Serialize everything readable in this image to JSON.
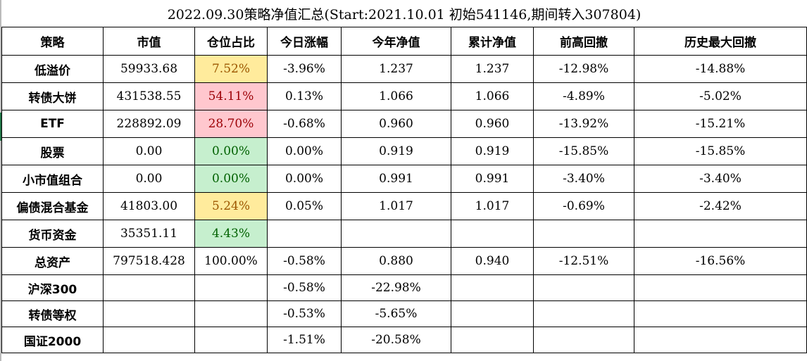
{
  "title": "2022.09.30策略净值汇总(Start:2021.10.01 初始541146,期间转入307804)",
  "headers": [
    "策略",
    "市值",
    "仓位占比",
    "今日涨幅",
    "今年净值",
    "累计净值",
    "前高回撤",
    "历史最大回撤"
  ],
  "colors": {
    "yellow_fill": "#ffeb9c",
    "yellow_text": "#9c5700",
    "red_fill": "#ffc7ce",
    "red_text": "#9c0006",
    "green_fill": "#c6efce",
    "green_text": "#006100"
  },
  "rows": [
    {
      "name": "低溢价",
      "value": "59933.68",
      "weight": "7.52%",
      "weight_style": "yellow",
      "today": "-3.96%",
      "ytd": "1.237",
      "cum": "1.237",
      "dd": "-12.98%",
      "maxdd": "-14.88%"
    },
    {
      "name": "转债大饼",
      "value": "431538.55",
      "weight": "54.11%",
      "weight_style": "red",
      "today": "0.13%",
      "ytd": "1.066",
      "cum": "1.066",
      "dd": "-4.89%",
      "maxdd": "-5.02%"
    },
    {
      "name": "ETF",
      "value": "228892.09",
      "weight": "28.70%",
      "weight_style": "red",
      "today": "-0.68%",
      "ytd": "0.960",
      "cum": "0.960",
      "dd": "-13.92%",
      "maxdd": "-15.21%"
    },
    {
      "name": "股票",
      "value": "0.00",
      "weight": "0.00%",
      "weight_style": "green",
      "today": "0.00%",
      "ytd": "0.919",
      "cum": "0.919",
      "dd": "-15.85%",
      "maxdd": "-15.85%"
    },
    {
      "name": "小市值组合",
      "value": "0.00",
      "weight": "0.00%",
      "weight_style": "green",
      "today": "0.00%",
      "ytd": "0.991",
      "cum": "0.991",
      "dd": "-3.40%",
      "maxdd": "-3.40%"
    },
    {
      "name": "偏债混合基金",
      "value": "41803.00",
      "weight": "5.24%",
      "weight_style": "yellow",
      "today": "0.05%",
      "ytd": "1.017",
      "cum": "1.017",
      "dd": "-0.69%",
      "maxdd": "-2.42%"
    },
    {
      "name": "货币资金",
      "value": "35351.11",
      "weight": "4.43%",
      "weight_style": "green",
      "today": "",
      "ytd": "",
      "cum": "",
      "dd": "",
      "maxdd": ""
    },
    {
      "name": "总资产",
      "value": "797518.428",
      "weight": "100.00%",
      "weight_style": "",
      "today": "-0.58%",
      "ytd": "0.880",
      "cum": "0.940",
      "dd": "-12.51%",
      "maxdd": "-16.56%"
    }
  ],
  "benchmarks": [
    {
      "name": "沪深300",
      "today": "-0.58%",
      "ytd": "-22.98%"
    },
    {
      "name": "转债等权",
      "today": "-0.53%",
      "ytd": "-5.65%"
    },
    {
      "name": "国证2000",
      "today": "-1.51%",
      "ytd": "-20.58%"
    }
  ]
}
